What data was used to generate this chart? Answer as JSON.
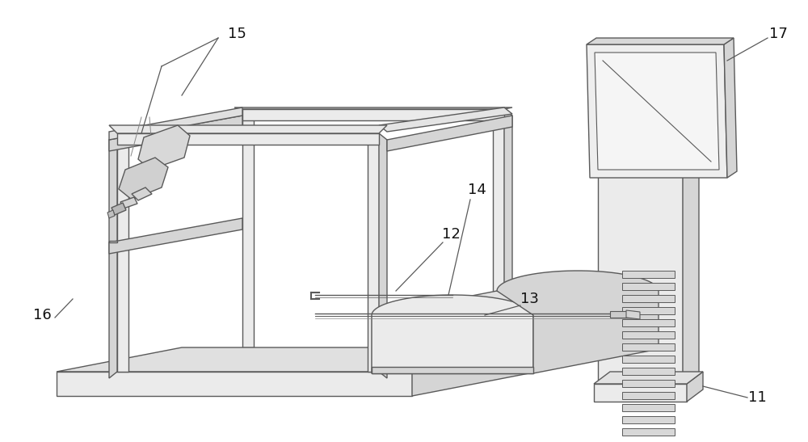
{
  "bg_color": "#ffffff",
  "line_color": "#5a5a5a",
  "fill_light": "#ebebeb",
  "fill_medium": "#d5d5d5",
  "fill_dark": "#c0c0c0",
  "fill_white": "#f5f5f5",
  "lw": 1.0
}
